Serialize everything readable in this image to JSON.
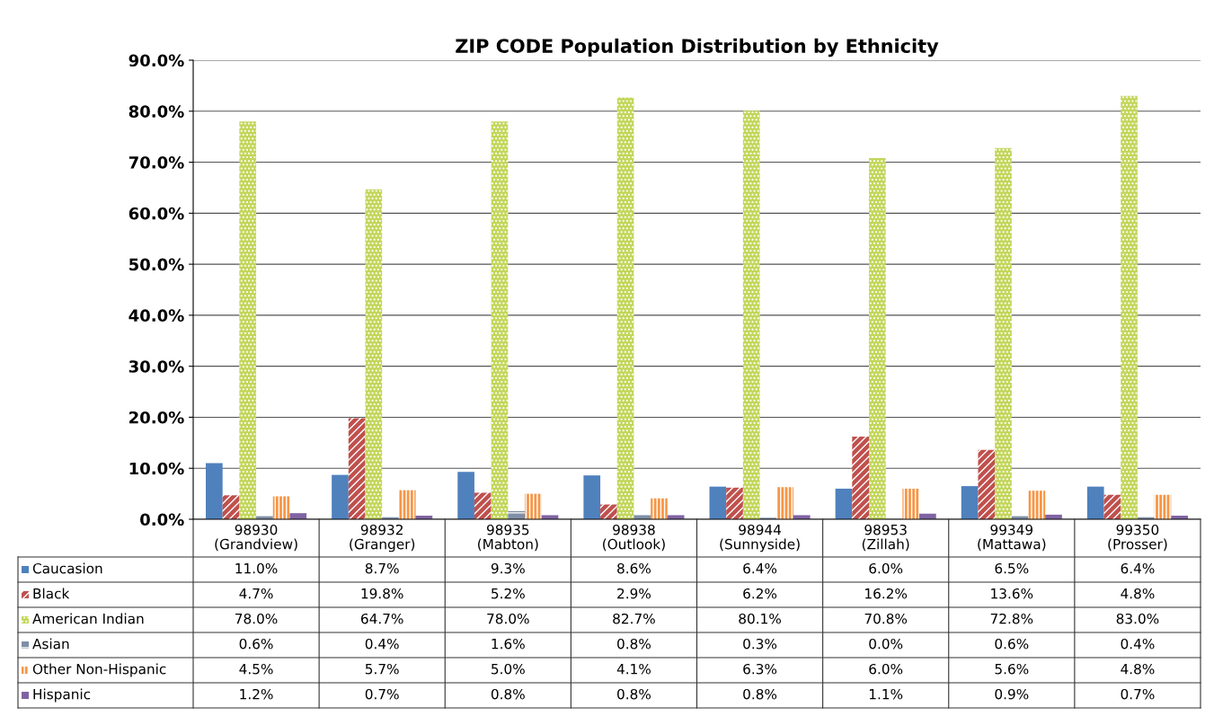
{
  "chart_data": {
    "type": "bar",
    "title": "ZIP CODE Population Distribution by Ethnicity",
    "categories": [
      "98930\n(Grandview)",
      "98932\n(Granger)",
      "98935\n(Mabton)",
      "98938\n(Outlook)",
      "98944\n(Sunnyside)",
      "98953\n(Zillah)",
      "99349\n(Mattawa)",
      "99350\n(Prosser)"
    ],
    "series": [
      {
        "name": "Caucasion",
        "color": "#4f81bd",
        "values": [
          11.0,
          8.7,
          9.3,
          8.6,
          6.4,
          6.0,
          6.5,
          6.4
        ],
        "value_labels": [
          "11.0%",
          "8.7%",
          "9.3%",
          "8.6%",
          "6.4%",
          "6.0%",
          "6.5%",
          "6.4%"
        ]
      },
      {
        "name": "Black",
        "color": "#c0504d",
        "values": [
          4.7,
          19.8,
          5.2,
          2.9,
          6.2,
          16.2,
          13.6,
          4.8
        ],
        "value_labels": [
          "4.7%",
          "19.8%",
          "5.2%",
          "2.9%",
          "6.2%",
          "16.2%",
          "13.6%",
          "4.8%"
        ]
      },
      {
        "name": "American Indian",
        "color": "#c3d65a",
        "values": [
          78.0,
          64.7,
          78.0,
          82.7,
          80.1,
          70.8,
          72.8,
          83.0
        ],
        "value_labels": [
          "78.0%",
          "64.7%",
          "78.0%",
          "82.7%",
          "80.1%",
          "70.8%",
          "72.8%",
          "83.0%"
        ]
      },
      {
        "name": "Asian",
        "color": "#7f8fa6",
        "values": [
          0.6,
          0.4,
          1.6,
          0.8,
          0.3,
          0.0,
          0.6,
          0.4
        ],
        "value_labels": [
          "0.6%",
          "0.4%",
          "1.6%",
          "0.8%",
          "0.3%",
          "0.0%",
          "0.6%",
          "0.4%"
        ]
      },
      {
        "name": "Other Non-Hispanic",
        "color": "#f79646",
        "values": [
          4.5,
          5.7,
          5.0,
          4.1,
          6.3,
          6.0,
          5.6,
          4.8
        ],
        "value_labels": [
          "4.5%",
          "5.7%",
          "5.0%",
          "4.1%",
          "6.3%",
          "6.0%",
          "5.6%",
          "4.8%"
        ]
      },
      {
        "name": "Hispanic",
        "color": "#8064a2",
        "values": [
          1.2,
          0.7,
          0.8,
          0.8,
          0.8,
          1.1,
          0.9,
          0.7
        ],
        "value_labels": [
          "1.2%",
          "0.7%",
          "0.8%",
          "0.8%",
          "0.8%",
          "1.1%",
          "0.9%",
          "0.7%"
        ]
      }
    ],
    "ylim": [
      0,
      90
    ],
    "yticks": [
      {
        "value": 0,
        "label": "0.0%"
      },
      {
        "value": 10,
        "label": "10.0%"
      },
      {
        "value": 20,
        "label": "20.0%"
      },
      {
        "value": 30,
        "label": "30.0%"
      },
      {
        "value": 40,
        "label": "40.0%"
      },
      {
        "value": 50,
        "label": "50.0%"
      },
      {
        "value": 60,
        "label": "60.0%"
      },
      {
        "value": 70,
        "label": "70.0%"
      },
      {
        "value": 80,
        "label": "80.0%"
      },
      {
        "value": 90,
        "label": "90.0%"
      }
    ],
    "grid": "y",
    "legend": "bottom"
  }
}
